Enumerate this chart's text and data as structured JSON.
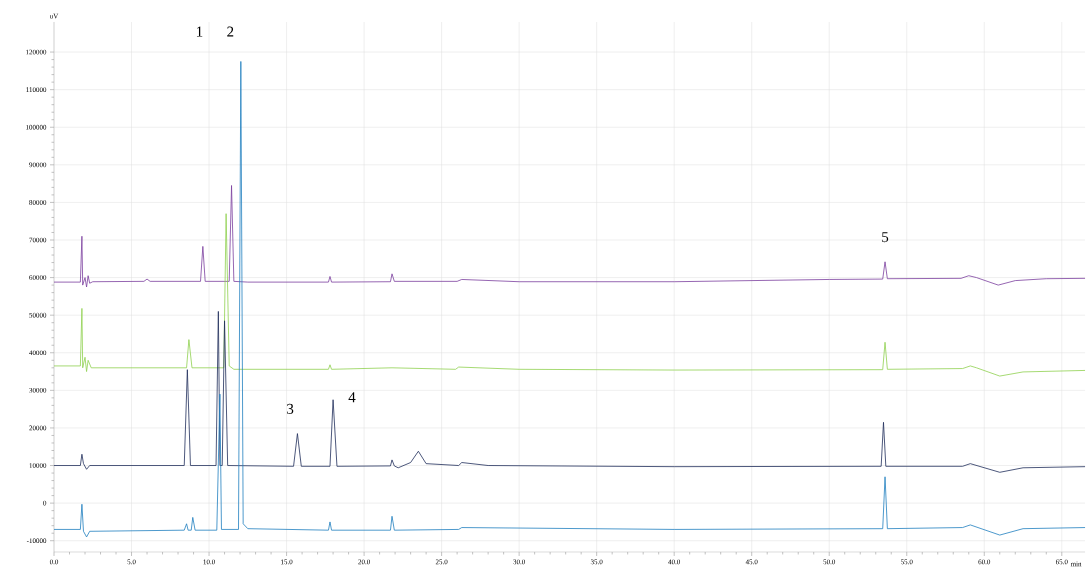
{
  "chart_data": {
    "type": "line",
    "xlabel": "min",
    "ylabel": "uV",
    "xlim": [
      0,
      66.5
    ],
    "ylim": [
      -13000,
      128000
    ],
    "xticks": [
      {
        "value": 0,
        "label": "0.0"
      },
      {
        "value": 5,
        "label": "5.0"
      },
      {
        "value": 10,
        "label": "10.0"
      },
      {
        "value": 15,
        "label": "15.0"
      },
      {
        "value": 20,
        "label": "20.0"
      },
      {
        "value": 25,
        "label": "25.0"
      },
      {
        "value": 30,
        "label": "30.0"
      },
      {
        "value": 35,
        "label": "35.0"
      },
      {
        "value": 40,
        "label": "40.0"
      },
      {
        "value": 45,
        "label": "45.0"
      },
      {
        "value": 50,
        "label": "50.0"
      },
      {
        "value": 55,
        "label": "55.0"
      },
      {
        "value": 60,
        "label": "60.0"
      },
      {
        "value": 65,
        "label": "65.0"
      }
    ],
    "yticks": [
      -10000,
      0,
      10000,
      20000,
      30000,
      40000,
      50000,
      60000,
      70000,
      80000,
      90000,
      100000,
      110000,
      120000
    ],
    "grid": true,
    "marker": "none",
    "line_style": "solid",
    "annotations": [
      "1",
      "2",
      "3",
      "4",
      "5"
    ],
    "series": [
      {
        "color": "#7b3f9e",
        "x": [
          0,
          1.7,
          1.8,
          1.85,
          2.0,
          2.1,
          2.2,
          2.3,
          2.5,
          5.8,
          6.0,
          6.2,
          9.45,
          9.6,
          9.75,
          11.3,
          11.45,
          11.6,
          12.5,
          17.7,
          17.8,
          17.9,
          21.7,
          21.8,
          21.95,
          26.0,
          26.3,
          30,
          40,
          50,
          53.45,
          53.6,
          53.75,
          58.5,
          59.0,
          59.5,
          60.9,
          62,
          64,
          66.5
        ],
        "values": [
          58800,
          58800,
          71000,
          58000,
          60000,
          57500,
          60500,
          58500,
          58900,
          59000,
          59600,
          59000,
          59000,
          68300,
          59000,
          59000,
          84500,
          59000,
          58800,
          58800,
          60300,
          58800,
          58900,
          61000,
          59000,
          59000,
          59500,
          58900,
          58900,
          59500,
          59600,
          64200,
          59700,
          59800,
          60500,
          60000,
          58000,
          59200,
          59700,
          59800
        ]
      },
      {
        "color": "#8fd14f",
        "x": [
          0,
          1.7,
          1.8,
          1.85,
          2.0,
          2.1,
          2.2,
          2.4,
          5,
          8.55,
          8.7,
          8.9,
          10.95,
          11.1,
          11.3,
          11.6,
          17.7,
          17.8,
          17.9,
          21.8,
          25.9,
          26.1,
          30,
          40,
          53.45,
          53.6,
          53.75,
          58.6,
          59.1,
          59.5,
          61.0,
          62.5,
          66.5
        ],
        "values": [
          36500,
          36500,
          51800,
          36000,
          38800,
          35000,
          38000,
          36000,
          36000,
          36000,
          43500,
          36000,
          36000,
          77000,
          36500,
          35600,
          35600,
          36800,
          35600,
          36000,
          35600,
          36200,
          35600,
          35400,
          35500,
          42800,
          35600,
          35800,
          36500,
          36000,
          33800,
          34900,
          35300
        ]
      },
      {
        "color": "#1f2d5a",
        "x": [
          0,
          1.7,
          1.8,
          1.9,
          2.1,
          2.3,
          8.4,
          8.6,
          8.8,
          10.45,
          10.6,
          10.7,
          10.85,
          11.0,
          11.2,
          15.45,
          15.7,
          15.95,
          17.8,
          18.0,
          18.25,
          21.7,
          21.8,
          21.95,
          22.2,
          23.0,
          23.5,
          24.0,
          26.1,
          26.3,
          28,
          40,
          53.35,
          53.5,
          53.65,
          58.6,
          59.1,
          61.0,
          62.5,
          66.5
        ],
        "values": [
          10000,
          10000,
          13000,
          10500,
          9000,
          10000,
          10000,
          35500,
          10000,
          10000,
          51000,
          10000,
          10000,
          48500,
          10000,
          9800,
          18500,
          9800,
          9800,
          27500,
          9800,
          9900,
          11500,
          9900,
          9400,
          10800,
          13800,
          10500,
          10000,
          10800,
          10000,
          9700,
          9800,
          21500,
          9800,
          9800,
          10500,
          8200,
          9400,
          9700
        ]
      },
      {
        "color": "#1f7fbf",
        "x": [
          0,
          1.7,
          1.8,
          1.9,
          2.1,
          2.3,
          8.4,
          8.55,
          8.65,
          8.85,
          8.95,
          9.1,
          10.5,
          10.7,
          10.8,
          11.9,
          12.05,
          12.2,
          12.5,
          17.7,
          17.8,
          17.9,
          21.7,
          21.8,
          21.95,
          26.1,
          26.3,
          40,
          53.45,
          53.6,
          53.75,
          58.6,
          59.1,
          61.0,
          62.5,
          66.5
        ],
        "values": [
          -7000,
          -7000,
          -300,
          -7500,
          -9000,
          -7500,
          -7200,
          -5500,
          -7200,
          -7200,
          -3800,
          -7200,
          -7200,
          29000,
          -7000,
          -7000,
          117500,
          -5500,
          -6800,
          -7200,
          -5000,
          -7200,
          -7200,
          -3500,
          -7200,
          -7000,
          -6500,
          -7000,
          -6800,
          7000,
          -6800,
          -6500,
          -5800,
          -8500,
          -6800,
          -6500
        ]
      }
    ]
  }
}
